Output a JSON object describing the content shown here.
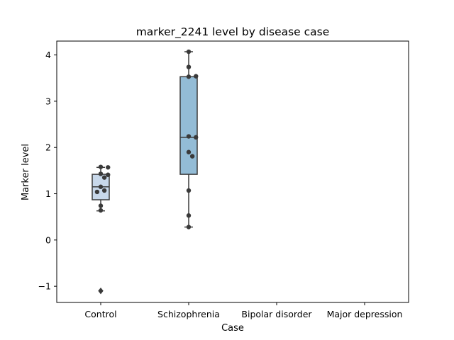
{
  "chart_data": {
    "type": "box",
    "title": "marker_2241 level by disease case",
    "xlabel": "Case",
    "ylabel": "Marker level",
    "categories": [
      "Control",
      "Schizophrenia",
      "Bipolar disorder",
      "Major depression"
    ],
    "ylim": [
      -1.35,
      4.3
    ],
    "yticks": [
      -1,
      0,
      1,
      2,
      3,
      4
    ],
    "grid": false,
    "boxes": [
      {
        "category": "Control",
        "q1": 0.87,
        "median": 1.15,
        "q3": 1.42,
        "whisker_low": 0.63,
        "whisker_high": 1.57,
        "outliers": [
          -1.1
        ],
        "color": "#c8d8ea"
      },
      {
        "category": "Schizophrenia",
        "q1": 1.42,
        "median": 2.22,
        "q3": 3.53,
        "whisker_low": 0.28,
        "whisker_high": 4.07,
        "outliers": [],
        "color": "#93bcd6"
      }
    ],
    "points": [
      {
        "category": "Control",
        "values": [
          1.58,
          1.57,
          1.43,
          1.41,
          1.35,
          1.15,
          1.07,
          1.04,
          0.74,
          0.64
        ]
      },
      {
        "category": "Schizophrenia",
        "values": [
          4.07,
          3.74,
          3.53,
          3.54,
          2.24,
          2.22,
          1.9,
          1.81,
          1.07,
          0.53,
          0.28
        ]
      }
    ],
    "colors": {
      "edge": "#3a3a3a",
      "point": "#3a3a3a"
    }
  }
}
